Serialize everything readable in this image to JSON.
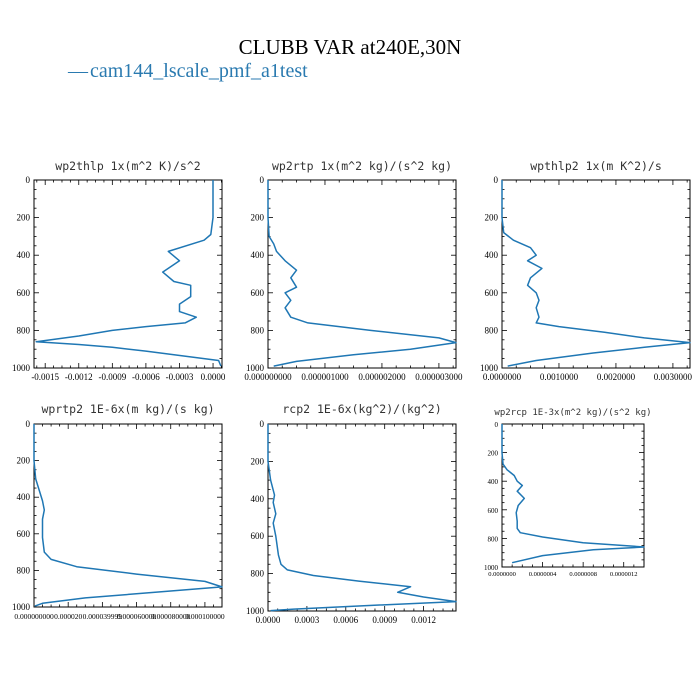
{
  "title": "CLUBB VAR at240E,30N",
  "legend": {
    "marker": "—",
    "label": "cam144_lscale_pmf_a1test",
    "color": "#1f77b4"
  },
  "chart_data": [
    {
      "type": "line",
      "title": "wp2thlp  1x(m^2 K)/s^2",
      "xlabel": "",
      "ylabel": "",
      "xlim": [
        -0.0016,
        8e-05
      ],
      "ylim": [
        1000,
        0
      ],
      "xticks": [
        -0.0015,
        -0.0012,
        -0.0009,
        -0.0006,
        -0.0003,
        0.0
      ],
      "xtick_labels": [
        "-0.0015",
        "-0.0012",
        "-0.0009",
        "-0.0006",
        "-0.0003",
        "0.0000"
      ],
      "yticks": [
        0,
        200,
        400,
        600,
        800,
        1000
      ],
      "ytick_labels": [
        "0",
        "200",
        "400",
        "600",
        "800",
        "1000"
      ],
      "series": [
        {
          "name": "cam144_lscale_pmf_a1test",
          "x": [
            0.0,
            0.0,
            0.0,
            -2e-05,
            -8e-05,
            -0.0004,
            -0.0003,
            -0.00045,
            -0.00035,
            -0.0002,
            -0.0002,
            -0.0003,
            -0.0003,
            -0.00015,
            -0.00025,
            -0.0006,
            -0.0009,
            -0.0012,
            -0.00158,
            -0.0012,
            -0.0009,
            -0.0006,
            5e-05,
            7e-05
          ],
          "y": [
            0,
            100,
            200,
            290,
            320,
            380,
            430,
            490,
            540,
            560,
            620,
            660,
            700,
            730,
            760,
            780,
            800,
            830,
            860,
            875,
            890,
            910,
            960,
            990
          ]
        }
      ]
    },
    {
      "type": "line",
      "title": "wp2rtp  1x(m^2 kg)/(s^2 kg)",
      "xlabel": "",
      "ylabel": "",
      "xlim": [
        0.0,
        3.3e-06
      ],
      "ylim": [
        1000,
        0
      ],
      "xticks": [
        0.0,
        1e-06,
        2e-06,
        3e-06
      ],
      "xtick_labels": [
        "0.000000000",
        "0.000001000",
        "0.000002000",
        "0.000003000"
      ],
      "yticks": [
        0,
        200,
        400,
        600,
        800,
        1000
      ],
      "ytick_labels": [
        "0",
        "200",
        "400",
        "600",
        "800",
        "1000"
      ],
      "series": [
        {
          "name": "cam144_lscale_pmf_a1test",
          "x": [
            0.0,
            0.0,
            0.0,
            2e-08,
            1e-07,
            1.5e-07,
            3e-07,
            5e-07,
            4e-07,
            5e-07,
            3e-07,
            4e-07,
            3e-07,
            4e-07,
            7e-07,
            1.8e-06,
            3e-06,
            3.3e-06,
            2.5e-06,
            1.5e-06,
            5e-07,
            1e-07
          ],
          "y": [
            0,
            100,
            200,
            300,
            340,
            380,
            430,
            480,
            520,
            570,
            600,
            640,
            680,
            730,
            760,
            800,
            840,
            865,
            900,
            930,
            965,
            990
          ]
        }
      ]
    },
    {
      "type": "line",
      "title": "wpthlp2  1x(m K^2)/s",
      "xlabel": "",
      "ylabel": "",
      "xlim": [
        0.0,
        0.0033
      ],
      "ylim": [
        1000,
        0
      ],
      "xticks": [
        0.0,
        0.001,
        0.002,
        0.003
      ],
      "xtick_labels": [
        "0.0000000",
        "0.0010000",
        "0.0020000",
        "0.0030000"
      ],
      "yticks": [
        0,
        200,
        400,
        600,
        800,
        1000
      ],
      "ytick_labels": [
        "0",
        "200",
        "400",
        "600",
        "800",
        "1000"
      ],
      "series": [
        {
          "name": "cam144_lscale_pmf_a1test",
          "x": [
            0.0,
            0.0,
            0.0,
            3e-05,
            0.0002,
            0.0005,
            0.0006,
            0.00045,
            0.0007,
            0.0005,
            0.00045,
            0.0006,
            0.00065,
            0.0006,
            0.00065,
            0.0006,
            0.001,
            0.0018,
            0.0025,
            0.0033,
            0.0025,
            0.0016,
            0.0006,
            0.0001
          ],
          "y": [
            0,
            100,
            200,
            280,
            320,
            360,
            400,
            430,
            470,
            520,
            560,
            600,
            640,
            680,
            730,
            760,
            780,
            810,
            840,
            865,
            890,
            920,
            960,
            990
          ]
        }
      ]
    },
    {
      "type": "line",
      "title": "wprtp2  1E-6x(m kg)/(s kg)",
      "xlabel": "",
      "ylabel": "",
      "xlim": [
        0.0,
        0.00011
      ],
      "ylim": [
        1000,
        0
      ],
      "xticks": [
        0.0,
        2e-05,
        4e-05,
        6e-05,
        8e-05,
        0.0001
      ],
      "xtick_labels": [
        "0.000000000",
        "0.000020",
        "0.000039999",
        "0.000060000",
        "0.000080000",
        "0.000100000"
      ],
      "yticks": [
        0,
        200,
        400,
        600,
        800,
        1000
      ],
      "ytick_labels": [
        "0",
        "200",
        "400",
        "600",
        "800",
        "1000"
      ],
      "series": [
        {
          "name": "cam144_lscale_pmf_a1test",
          "x": [
            0.0,
            0.0,
            0.0,
            1e-06,
            3e-06,
            5e-06,
            6e-06,
            5e-06,
            5e-06,
            5e-06,
            6e-06,
            1e-05,
            2.5e-05,
            6e-05,
            0.0001,
            0.00011,
            7e-05,
            3e-05,
            5e-06,
            5e-07
          ],
          "y": [
            0,
            100,
            200,
            300,
            360,
            420,
            470,
            520,
            560,
            620,
            700,
            740,
            780,
            820,
            860,
            890,
            920,
            950,
            980,
            995
          ]
        }
      ]
    },
    {
      "type": "line",
      "title": "rcp2  1E-6x(kg^2)/(kg^2)",
      "xlabel": "",
      "ylabel": "",
      "xlim": [
        0.0,
        0.00145
      ],
      "ylim": [
        1000,
        0
      ],
      "xticks": [
        0.0,
        0.0003,
        0.0006,
        0.0009,
        0.0012
      ],
      "xtick_labels": [
        "0.0000",
        "0.0003",
        "0.0006",
        "0.0009",
        "0.0012"
      ],
      "yticks": [
        0,
        200,
        400,
        600,
        800,
        1000
      ],
      "ytick_labels": [
        "0",
        "200",
        "400",
        "600",
        "800",
        "1000"
      ],
      "series": [
        {
          "name": "cam144_lscale_pmf_a1test",
          "x": [
            0.0,
            0.0,
            0.0,
            2e-05,
            5e-05,
            4e-05,
            6e-05,
            4e-05,
            6e-05,
            8e-05,
            0.0001,
            0.00015,
            0.00035,
            0.0007,
            0.0011,
            0.001,
            0.0012,
            0.00145,
            0.0008,
            0.0002,
            2e-05
          ],
          "y": [
            0,
            100,
            200,
            300,
            380,
            420,
            480,
            530,
            600,
            700,
            750,
            780,
            810,
            840,
            870,
            900,
            925,
            950,
            970,
            990,
            998
          ]
        }
      ]
    },
    {
      "type": "line",
      "title": "wp2rcp  1E-3x(m^2 kg)/(s^2 kg)",
      "xlabel": "",
      "ylabel": "",
      "xlim": [
        0.0,
        1.4e-06
      ],
      "ylim": [
        1000,
        0
      ],
      "xticks": [
        0.0,
        4e-07,
        8e-07,
        1.2e-06
      ],
      "xtick_labels": [
        "0.0000000",
        "0.0000004",
        "0.0000008",
        "0.0000012"
      ],
      "yticks": [
        0,
        200,
        400,
        600,
        800,
        1000
      ],
      "ytick_labels": [
        "0",
        "200",
        "400",
        "600",
        "800",
        "1000"
      ],
      "series": [
        {
          "name": "cam144_lscale_pmf_a1test",
          "x": [
            0.0,
            0.0,
            0.0,
            1e-08,
            5e-08,
            1.2e-07,
            1.5e-07,
            2e-07,
            1.5e-07,
            2.2e-07,
            1.6e-07,
            1.4e-07,
            1.5e-07,
            1.5e-07,
            1.8e-07,
            4e-07,
            8e-07,
            1.4e-06,
            9e-07,
            4e-07,
            1e-07
          ],
          "y": [
            0,
            100,
            200,
            280,
            320,
            360,
            400,
            430,
            470,
            520,
            570,
            620,
            680,
            730,
            760,
            790,
            830,
            860,
            880,
            920,
            970
          ]
        }
      ]
    }
  ]
}
